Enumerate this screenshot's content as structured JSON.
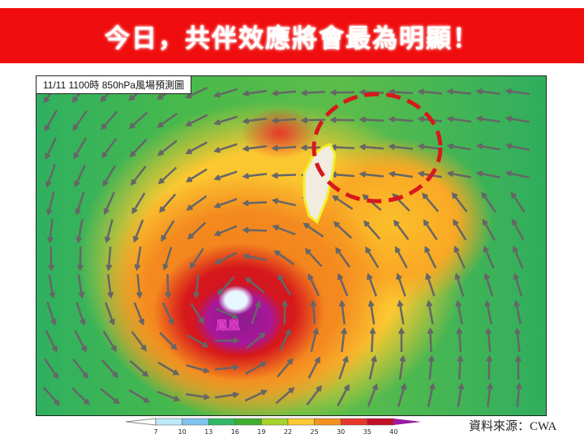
{
  "banner": {
    "title": "今日，共伴效應將會最為明顯！",
    "color": "#f00d0d"
  },
  "map": {
    "label": "11/11 1100時  850hPa風場預測圖",
    "typhoon_name": "鳳凰",
    "highlight_color": "#d7191c",
    "taiwan_outline_color": "#f2ef2a"
  },
  "colorbar": {
    "ticks": [
      "7",
      "10",
      "13",
      "16",
      "19",
      "22",
      "25",
      "30",
      "35",
      "40"
    ],
    "colors": [
      "#bfe8f8",
      "#7fc4ee",
      "#2fb866",
      "#3fae2e",
      "#a6d42a",
      "#fbc831",
      "#f4921f",
      "#e8382a",
      "#c4102a",
      "#9b1aa0"
    ]
  },
  "source": "資料來源：CWA"
}
